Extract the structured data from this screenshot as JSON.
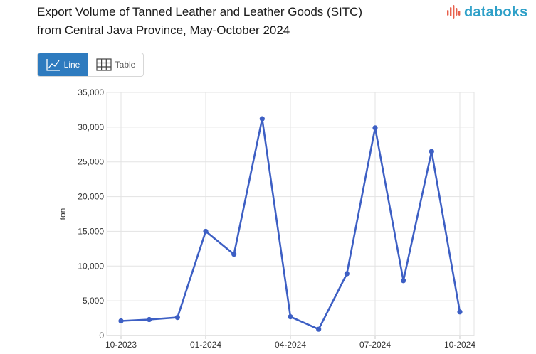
{
  "header": {
    "title_line1": "Export Volume of Tanned Leather and Leather Goods (SITC)",
    "title_line2": "from Central Java Province, May-October 2024"
  },
  "logo": {
    "text": "databoks",
    "icon": "databoks-bars-icon",
    "color": "#2ea0c8",
    "accent_color": "#e8604c"
  },
  "view_toggle": {
    "line_label": "Line",
    "table_label": "Table",
    "line_icon": "line-chart-icon",
    "table_icon": "table-grid-icon",
    "selected": "Line",
    "active_color": "#2e7bbf"
  },
  "chart_data": {
    "type": "line",
    "ylabel": "ton",
    "ylim": [
      0,
      35000
    ],
    "yticks": [
      0,
      5000,
      10000,
      15000,
      20000,
      25000,
      30000,
      35000
    ],
    "ytick_labels": [
      "0",
      "5,000",
      "10,000",
      "15,000",
      "20,000",
      "25,000",
      "30,000",
      "35,000"
    ],
    "xtick_labels": [
      "10-2023",
      "01-2024",
      "04-2024",
      "07-2024",
      "10-2024"
    ],
    "x": [
      "10-2023",
      "11-2023",
      "12-2023",
      "01-2024",
      "02-2024",
      "03-2024",
      "04-2024",
      "05-2024",
      "06-2024",
      "07-2024",
      "08-2024",
      "09-2024",
      "10-2024"
    ],
    "values": [
      2100,
      2300,
      2600,
      15000,
      11700,
      31200,
      2700,
      900,
      8900,
      29900,
      7900,
      26500,
      3400
    ],
    "line_color": "#3d5fc4",
    "grid": true
  }
}
